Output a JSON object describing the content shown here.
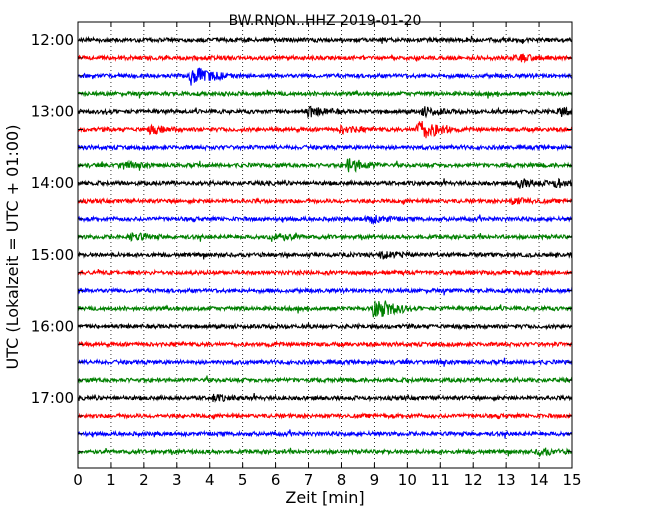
{
  "chart_data": {
    "type": "line",
    "title": "BW.RNON..HHZ 2019-01-20",
    "xlabel": "Zeit  [min]",
    "ylabel": "UTC (Lokalzeit = UTC + 01:00)",
    "xlim": [
      0,
      15
    ],
    "x_ticks": [
      "0",
      "1",
      "2",
      "3",
      "4",
      "5",
      "6",
      "7",
      "8",
      "9",
      "10",
      "11",
      "12",
      "13",
      "14",
      "15"
    ],
    "y_tick_labels": [
      "12:00",
      "13:00",
      "14:00",
      "15:00",
      "16:00",
      "17:00"
    ],
    "grid": "vertical dotted",
    "trace_colors": [
      "#000000",
      "#ff0000",
      "#0000ff",
      "#008000"
    ],
    "traces": [
      {
        "start": "12:00",
        "events": []
      },
      {
        "start": "12:15",
        "events": [
          [
            13.3,
            0.4
          ]
        ]
      },
      {
        "start": "12:30",
        "events": [
          [
            3.45,
            1.0
          ]
        ]
      },
      {
        "start": "12:45",
        "events": []
      },
      {
        "start": "13:00",
        "events": [
          [
            7.0,
            0.5
          ],
          [
            10.5,
            0.45
          ],
          [
            14.6,
            0.45
          ]
        ]
      },
      {
        "start": "13:15",
        "events": [
          [
            2.2,
            0.4
          ],
          [
            8.0,
            0.35
          ],
          [
            10.35,
            1.1
          ]
        ]
      },
      {
        "start": "13:30",
        "events": []
      },
      {
        "start": "13:45",
        "events": [
          [
            1.3,
            0.35
          ],
          [
            8.2,
            0.7
          ]
        ]
      },
      {
        "start": "14:00",
        "events": [
          [
            13.4,
            0.45
          ],
          [
            14.5,
            0.4
          ]
        ]
      },
      {
        "start": "14:15",
        "events": [
          [
            13.2,
            0.35
          ]
        ]
      },
      {
        "start": "14:30",
        "events": [
          [
            8.8,
            0.45
          ]
        ]
      },
      {
        "start": "14:45",
        "events": [
          [
            1.6,
            0.4
          ],
          [
            5.9,
            0.45
          ]
        ]
      },
      {
        "start": "15:00",
        "events": [
          [
            9.2,
            0.35
          ]
        ]
      },
      {
        "start": "15:15",
        "events": []
      },
      {
        "start": "15:30",
        "events": []
      },
      {
        "start": "15:45",
        "events": [
          [
            9.0,
            1.1
          ]
        ]
      },
      {
        "start": "16:00",
        "events": []
      },
      {
        "start": "16:15",
        "events": []
      },
      {
        "start": "16:30",
        "events": []
      },
      {
        "start": "16:45",
        "events": []
      },
      {
        "start": "17:00",
        "events": [
          [
            4.1,
            0.3
          ]
        ]
      },
      {
        "start": "17:15",
        "events": []
      },
      {
        "start": "17:30",
        "events": []
      },
      {
        "start": "17:45",
        "events": [
          [
            14.0,
            0.35
          ]
        ]
      }
    ]
  }
}
